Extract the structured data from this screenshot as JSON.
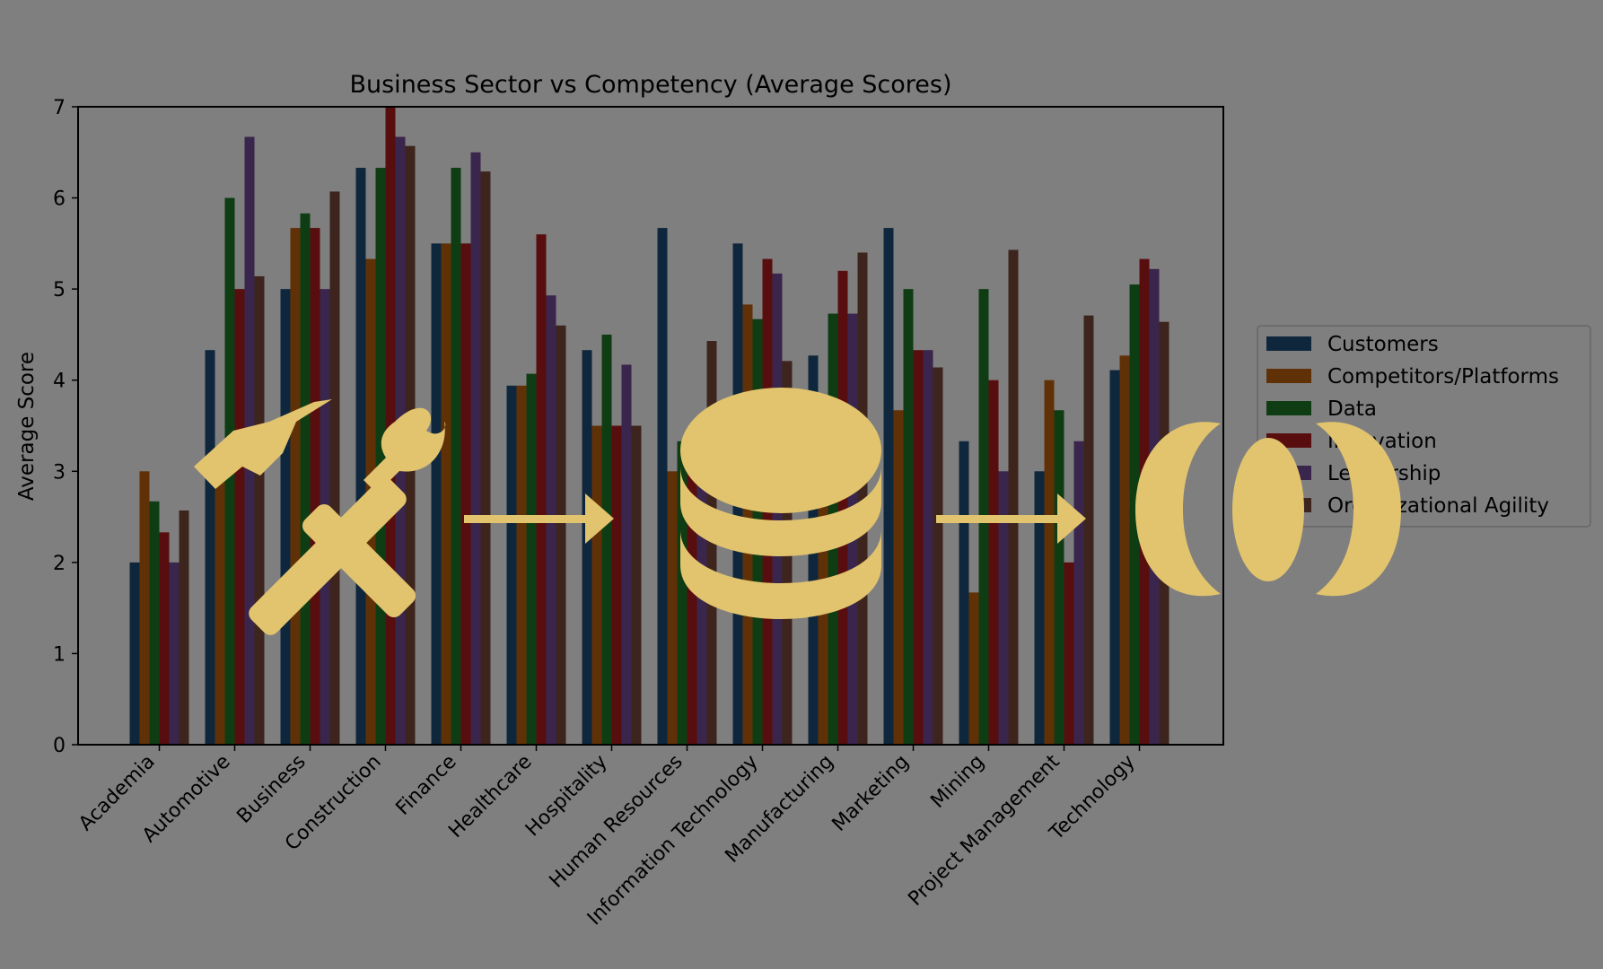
{
  "chart_data": {
    "type": "bar",
    "title": "Business Sector vs Competency (Average Scores)",
    "xlabel": "",
    "ylabel": "Average Score",
    "ylim": [
      0,
      7
    ],
    "yticks": [
      "0",
      "1",
      "2",
      "3",
      "4",
      "5",
      "6",
      "7"
    ],
    "grid": false,
    "legend_position": "right",
    "categories": [
      "Academia",
      "Automotive",
      "Business",
      "Construction",
      "Finance",
      "Healthcare",
      "Hospitality",
      "Human Resources",
      "Information Technology",
      "Manufacturing",
      "Marketing",
      "Mining",
      "Project Management",
      "Technology"
    ],
    "series": [
      {
        "name": "Customers",
        "color": "#1f4e79",
        "values": [
          2.0,
          4.33,
          5.0,
          6.33,
          5.5,
          3.94,
          4.33,
          5.67,
          5.5,
          4.27,
          5.67,
          3.33,
          3.0,
          4.11
        ]
      },
      {
        "name": "Competitors/Platforms",
        "color": "#c0620f",
        "values": [
          3.0,
          3.0,
          5.67,
          5.33,
          5.5,
          3.94,
          3.5,
          3.0,
          4.83,
          3.0,
          3.67,
          1.67,
          4.0,
          4.27
        ]
      },
      {
        "name": "Data",
        "color": "#1e7a26",
        "values": [
          2.67,
          6.0,
          5.83,
          6.33,
          6.33,
          4.07,
          4.5,
          3.33,
          4.67,
          4.73,
          5.0,
          5.0,
          3.67,
          5.05
        ]
      },
      {
        "name": "Innovation",
        "color": "#b01c1c",
        "values": [
          2.33,
          5.0,
          5.67,
          7.0,
          5.5,
          5.6,
          3.5,
          3.0,
          5.33,
          5.2,
          4.33,
          4.0,
          2.0,
          5.33
        ]
      },
      {
        "name": "Leadership",
        "color": "#744a98",
        "values": [
          2.0,
          6.67,
          5.0,
          6.67,
          6.5,
          4.93,
          4.17,
          3.0,
          5.17,
          4.73,
          4.33,
          3.0,
          3.33,
          5.22
        ]
      },
      {
        "name": "Organizational Agility",
        "color": "#7a4a3a",
        "values": [
          2.57,
          5.14,
          6.07,
          6.57,
          6.29,
          4.6,
          3.5,
          4.43,
          4.21,
          5.4,
          4.14,
          5.43,
          4.71,
          4.64
        ]
      }
    ]
  },
  "legend_visible_labels": [
    "Customers",
    "Competitors/Platforms",
    "Data",
    "ovation",
    "zational Agility"
  ],
  "overlay": {
    "dim_color": "#000000",
    "icon_color": "#e2c46e",
    "icons": [
      "hammer-wrench-icon",
      "arrow-right-icon",
      "database-icon",
      "arrow-right-icon",
      "venn-overlap-icon"
    ]
  }
}
